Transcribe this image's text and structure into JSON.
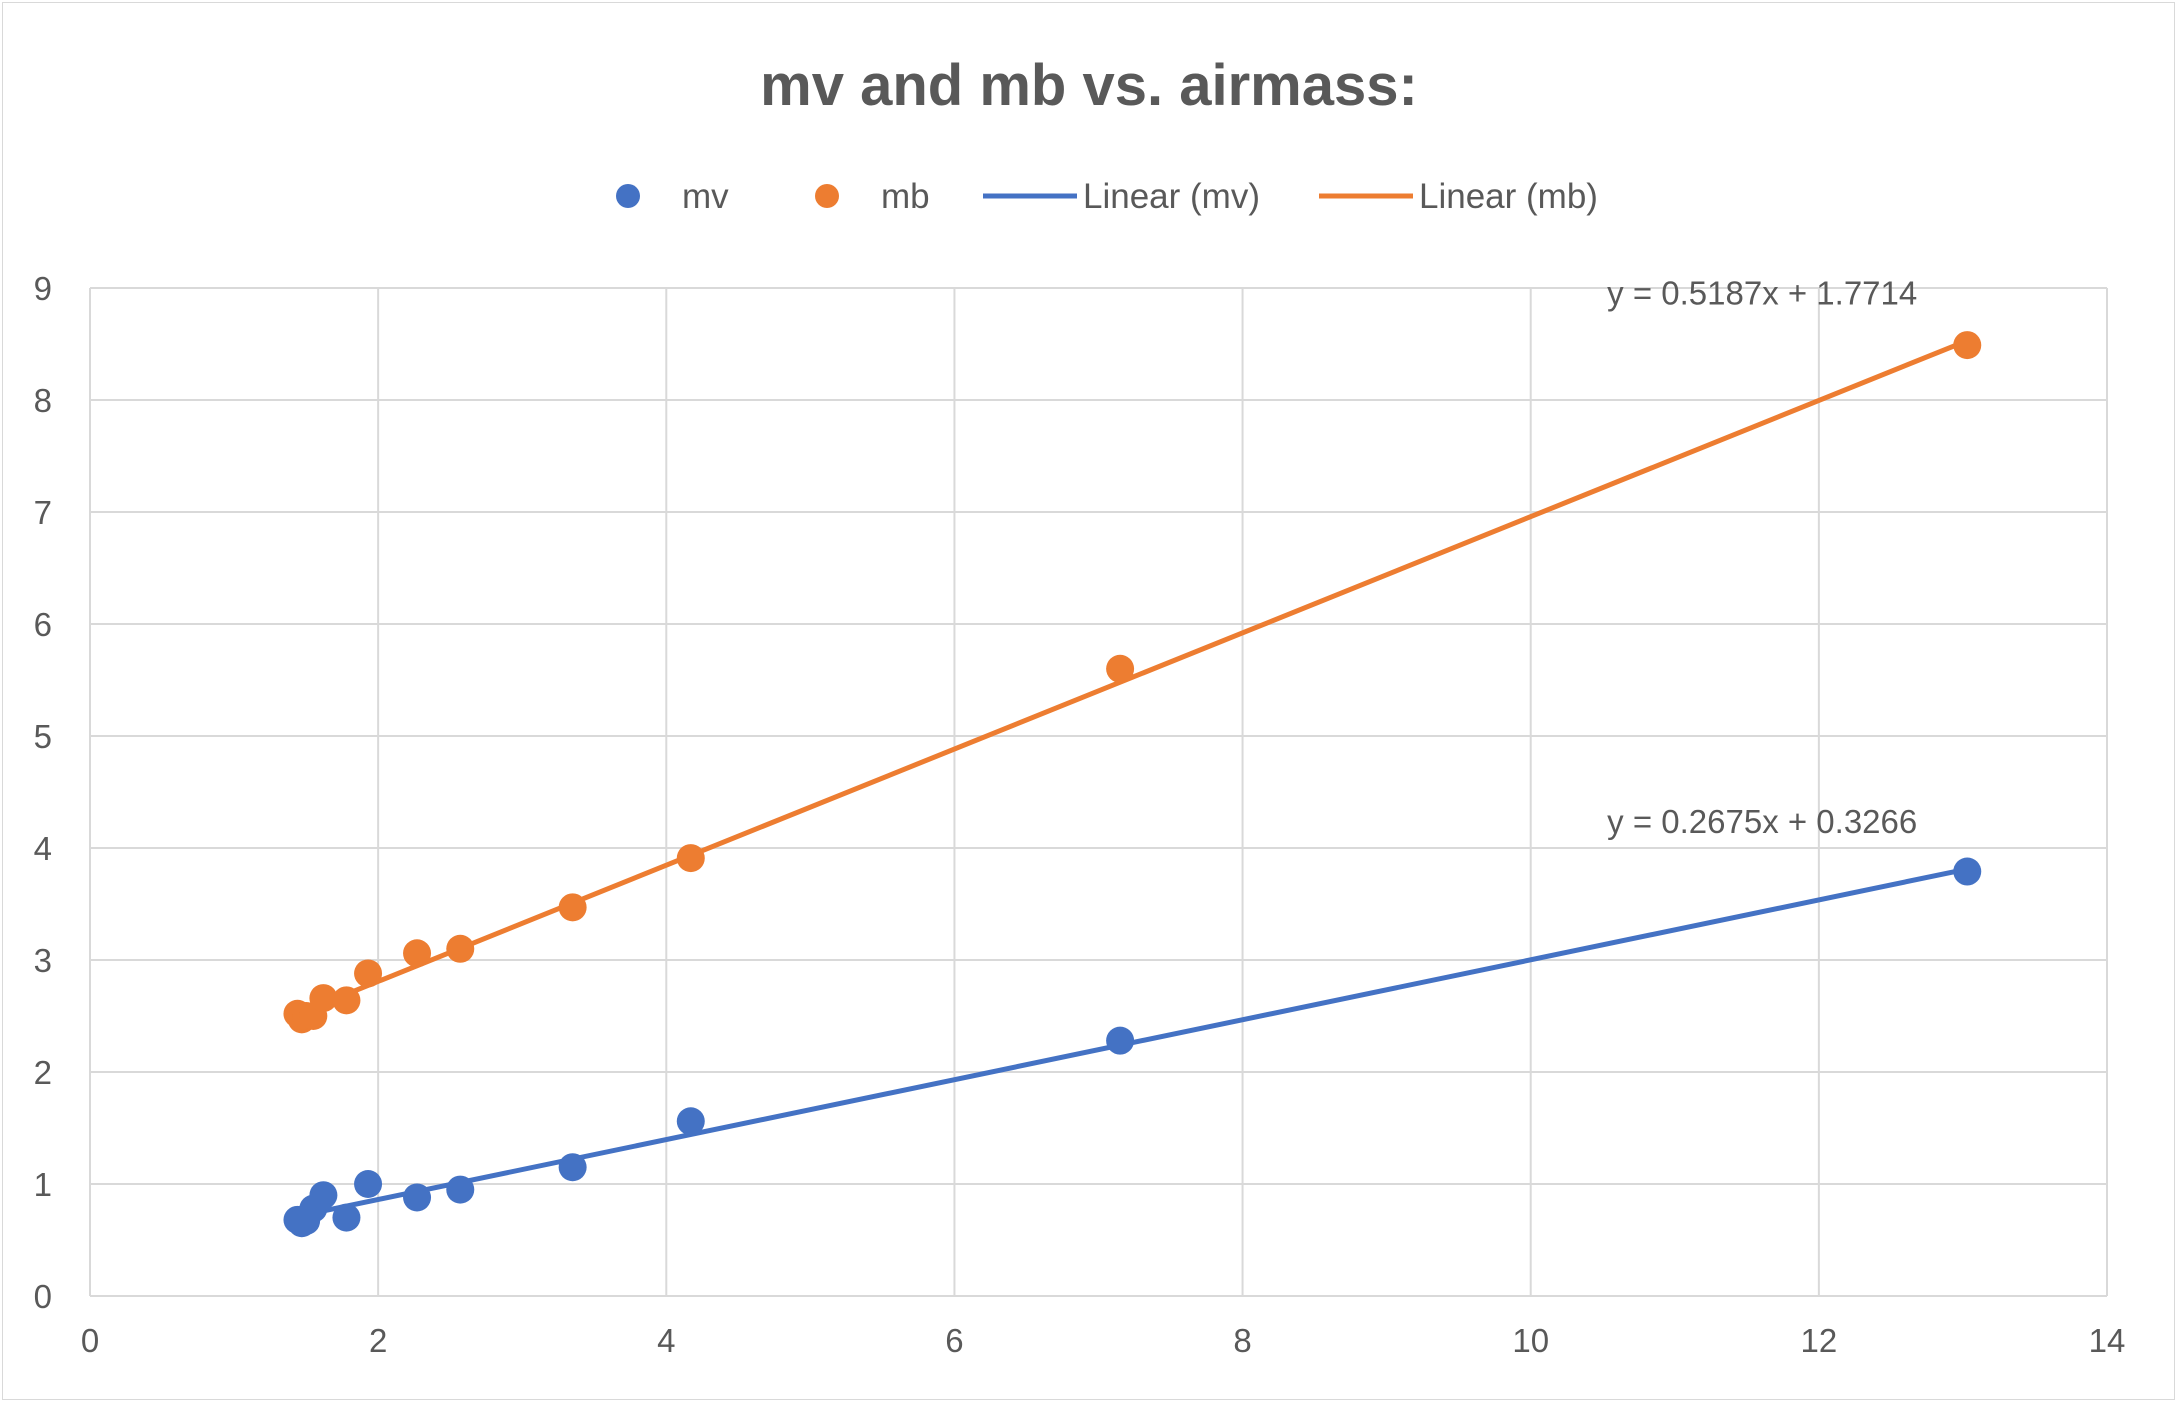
{
  "chart_data": {
    "type": "scatter",
    "title": "mv and mb vs. airmass:",
    "xlabel": "",
    "ylabel": "",
    "xlim": [
      0,
      14
    ],
    "ylim": [
      0,
      9
    ],
    "x_ticks": [
      "0",
      "2",
      "4",
      "6",
      "8",
      "10",
      "12",
      "14"
    ],
    "y_ticks": [
      "0",
      "1",
      "2",
      "3",
      "4",
      "5",
      "6",
      "7",
      "8",
      "9"
    ],
    "grid": true,
    "legend_position": "top",
    "legend": [
      "mv",
      "mb",
      "Linear (mv)",
      "Linear (mb)"
    ],
    "series": [
      {
        "name": "mv",
        "color": "#4472C4",
        "x": [
          1.44,
          1.47,
          1.5,
          1.55,
          1.62,
          1.78,
          1.93,
          2.27,
          2.57,
          3.35,
          4.17,
          7.15,
          13.03
        ],
        "y": [
          0.68,
          0.65,
          0.67,
          0.78,
          0.9,
          0.7,
          1.0,
          0.88,
          0.95,
          1.15,
          1.56,
          2.28,
          3.79
        ]
      },
      {
        "name": "mb",
        "color": "#ED7D31",
        "x": [
          1.44,
          1.47,
          1.5,
          1.55,
          1.62,
          1.78,
          1.93,
          2.27,
          2.57,
          3.35,
          4.17,
          7.15,
          13.03
        ],
        "y": [
          2.52,
          2.47,
          2.5,
          2.5,
          2.66,
          2.64,
          2.88,
          3.06,
          3.1,
          3.47,
          3.91,
          5.6,
          8.49
        ]
      }
    ],
    "trendlines": [
      {
        "name": "Linear (mv)",
        "color": "#4472C4",
        "slope": 0.2675,
        "intercept": 0.3266,
        "x_range": [
          1.44,
          13.03
        ],
        "equation": "y = 0.2675x + 0.3266"
      },
      {
        "name": "Linear (mb)",
        "color": "#ED7D31",
        "slope": 0.5187,
        "intercept": 1.7714,
        "x_range": [
          1.44,
          13.03
        ],
        "equation": "y = 0.5187x + 1.7714"
      }
    ]
  }
}
